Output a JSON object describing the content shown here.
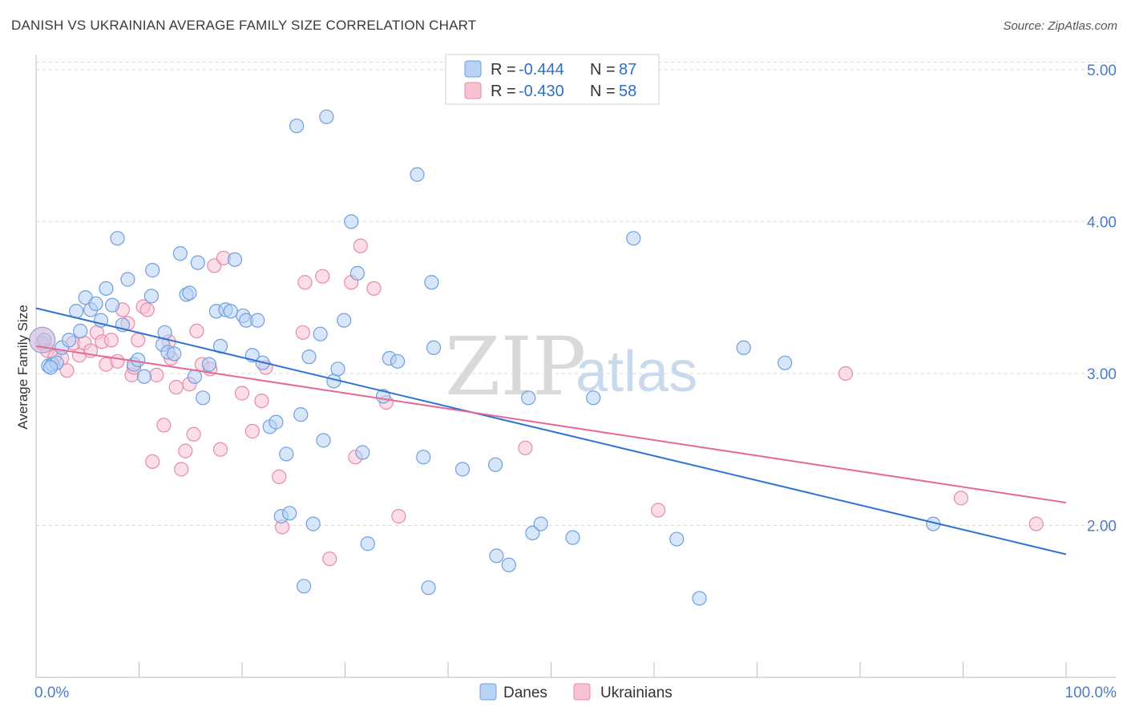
{
  "title": "DANISH VS UKRAINIAN AVERAGE FAMILY SIZE CORRELATION CHART",
  "source": "Source: ZipAtlas.com",
  "watermark": {
    "zip": "ZIP",
    "atlas": "atlas"
  },
  "colors": {
    "danes_fill": "#b7d2f4",
    "danes_stroke": "#6f9fe0",
    "danes_line": "#2f73d0",
    "ukr_fill": "#f7c3d3",
    "ukr_stroke": "#e88aa9",
    "ukr_line": "#e46a95",
    "grid": "#d9d9d9"
  },
  "legend": {
    "r_label": "R =",
    "n_label": "N =",
    "danes_r": "-0.444",
    "danes_n": "87",
    "ukr_r": "-0.430",
    "ukr_n": "58"
  },
  "chart_data": {
    "type": "scatter",
    "title": "DANISH VS UKRAINIAN AVERAGE FAMILY SIZE CORRELATION CHART",
    "xlabel": "",
    "ylabel": "Average Family Size",
    "xlim": [
      0,
      100
    ],
    "ylim": [
      1.0,
      5.1
    ],
    "x_tick_labels": [
      "0.0%",
      "100.0%"
    ],
    "y_ticks": [
      2.0,
      3.0,
      4.0,
      5.0
    ],
    "y_tick_labels": [
      "2.00",
      "3.00",
      "4.00",
      "5.00"
    ],
    "grid": true,
    "legend_position": "top-center",
    "series": [
      {
        "name": "Danes",
        "trend": [
          [
            0,
            3.43
          ],
          [
            100,
            1.81
          ]
        ],
        "points": [
          [
            0.8,
            3.22
          ],
          [
            1.2,
            3.05
          ],
          [
            1.6,
            3.06
          ],
          [
            2.0,
            3.07
          ],
          [
            2.5,
            3.17
          ],
          [
            3.2,
            3.22
          ],
          [
            3.9,
            3.41
          ],
          [
            4.3,
            3.28
          ],
          [
            4.8,
            3.5
          ],
          [
            5.3,
            3.42
          ],
          [
            5.8,
            3.46
          ],
          [
            6.3,
            3.35
          ],
          [
            6.8,
            3.56
          ],
          [
            7.4,
            3.45
          ],
          [
            7.9,
            3.89
          ],
          [
            8.4,
            3.32
          ],
          [
            8.9,
            3.62
          ],
          [
            9.5,
            3.06
          ],
          [
            9.9,
            3.09
          ],
          [
            10.5,
            2.98
          ],
          [
            11.2,
            3.51
          ],
          [
            11.3,
            3.68
          ],
          [
            12.3,
            3.19
          ],
          [
            12.5,
            3.27
          ],
          [
            12.8,
            3.14
          ],
          [
            13.4,
            3.13
          ],
          [
            14.0,
            3.79
          ],
          [
            14.6,
            3.52
          ],
          [
            14.9,
            3.53
          ],
          [
            15.4,
            2.98
          ],
          [
            15.7,
            3.73
          ],
          [
            16.2,
            2.84
          ],
          [
            16.8,
            3.06
          ],
          [
            17.5,
            3.41
          ],
          [
            17.9,
            3.18
          ],
          [
            18.4,
            3.42
          ],
          [
            18.9,
            3.41
          ],
          [
            19.3,
            3.75
          ],
          [
            20.1,
            3.38
          ],
          [
            20.4,
            3.35
          ],
          [
            21.0,
            3.12
          ],
          [
            21.5,
            3.35
          ],
          [
            22.0,
            3.07
          ],
          [
            22.7,
            2.65
          ],
          [
            23.3,
            2.68
          ],
          [
            23.8,
            2.06
          ],
          [
            24.3,
            2.47
          ],
          [
            24.6,
            2.08
          ],
          [
            25.3,
            4.63
          ],
          [
            25.7,
            2.73
          ],
          [
            26.0,
            1.6
          ],
          [
            26.5,
            3.11
          ],
          [
            26.9,
            2.01
          ],
          [
            27.6,
            3.26
          ],
          [
            27.9,
            2.56
          ],
          [
            28.2,
            4.69
          ],
          [
            28.9,
            2.95
          ],
          [
            29.3,
            3.03
          ],
          [
            29.9,
            3.35
          ],
          [
            30.6,
            4.0
          ],
          [
            31.2,
            3.66
          ],
          [
            31.7,
            2.48
          ],
          [
            32.2,
            1.88
          ],
          [
            33.7,
            2.85
          ],
          [
            34.3,
            3.1
          ],
          [
            35.1,
            3.08
          ],
          [
            37.0,
            4.31
          ],
          [
            37.6,
            2.45
          ],
          [
            38.1,
            1.59
          ],
          [
            38.4,
            3.6
          ],
          [
            38.6,
            3.17
          ],
          [
            41.4,
            2.37
          ],
          [
            44.6,
            2.4
          ],
          [
            44.7,
            1.8
          ],
          [
            45.9,
            1.74
          ],
          [
            47.8,
            2.84
          ],
          [
            48.2,
            1.95
          ],
          [
            49.0,
            2.01
          ],
          [
            52.1,
            1.92
          ],
          [
            54.1,
            2.84
          ],
          [
            58.0,
            3.89
          ],
          [
            62.2,
            1.91
          ],
          [
            64.4,
            1.52
          ],
          [
            68.7,
            3.17
          ],
          [
            72.7,
            3.07
          ],
          [
            87.1,
            2.01
          ],
          [
            1.4,
            3.04
          ]
        ]
      },
      {
        "name": "Ukrainians",
        "trend": [
          [
            0,
            3.18
          ],
          [
            100,
            2.15
          ]
        ],
        "points": [
          [
            0.6,
            3.2
          ],
          [
            1.1,
            3.15
          ],
          [
            1.8,
            3.11
          ],
          [
            2.5,
            3.1
          ],
          [
            3.0,
            3.02
          ],
          [
            3.6,
            3.2
          ],
          [
            4.2,
            3.12
          ],
          [
            4.7,
            3.2
          ],
          [
            5.3,
            3.15
          ],
          [
            5.9,
            3.27
          ],
          [
            6.4,
            3.21
          ],
          [
            6.8,
            3.06
          ],
          [
            7.3,
            3.22
          ],
          [
            7.9,
            3.08
          ],
          [
            8.4,
            3.42
          ],
          [
            8.9,
            3.33
          ],
          [
            9.3,
            2.99
          ],
          [
            9.5,
            3.04
          ],
          [
            9.9,
            3.22
          ],
          [
            10.4,
            3.44
          ],
          [
            10.8,
            3.42
          ],
          [
            11.3,
            2.42
          ],
          [
            11.7,
            2.99
          ],
          [
            12.4,
            2.66
          ],
          [
            12.9,
            3.21
          ],
          [
            13.1,
            3.1
          ],
          [
            13.6,
            2.91
          ],
          [
            14.1,
            2.37
          ],
          [
            14.5,
            2.49
          ],
          [
            14.9,
            2.93
          ],
          [
            15.3,
            2.6
          ],
          [
            15.6,
            3.28
          ],
          [
            16.1,
            3.06
          ],
          [
            16.9,
            3.03
          ],
          [
            17.3,
            3.71
          ],
          [
            17.9,
            2.5
          ],
          [
            18.2,
            3.76
          ],
          [
            20.0,
            2.87
          ],
          [
            21.0,
            2.62
          ],
          [
            21.9,
            2.82
          ],
          [
            22.3,
            3.04
          ],
          [
            23.6,
            2.32
          ],
          [
            23.9,
            1.99
          ],
          [
            25.9,
            3.27
          ],
          [
            26.1,
            3.6
          ],
          [
            27.8,
            3.64
          ],
          [
            28.5,
            1.78
          ],
          [
            30.6,
            3.6
          ],
          [
            31.0,
            2.45
          ],
          [
            31.5,
            3.84
          ],
          [
            32.8,
            3.56
          ],
          [
            34.0,
            2.81
          ],
          [
            35.2,
            2.06
          ],
          [
            47.5,
            2.51
          ],
          [
            60.4,
            2.1
          ],
          [
            78.6,
            3.0
          ],
          [
            89.8,
            2.18
          ],
          [
            97.1,
            2.01
          ]
        ]
      }
    ]
  },
  "bottom_legend": {
    "danes": "Danes",
    "ukrainians": "Ukrainians"
  }
}
